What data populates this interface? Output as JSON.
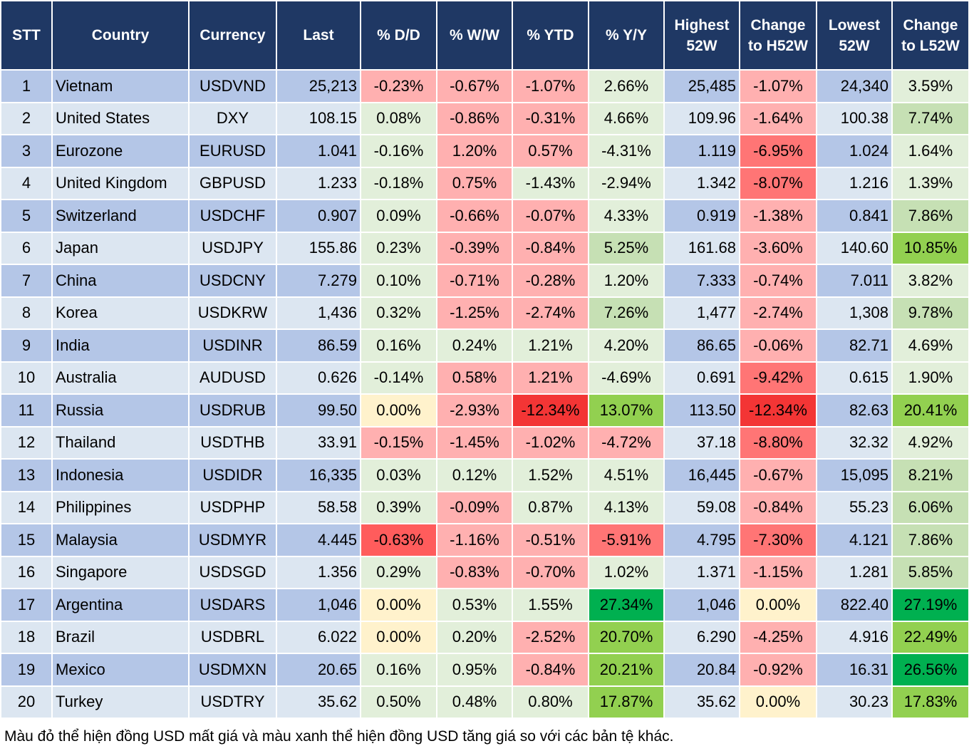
{
  "headers": [
    "STT",
    "Country",
    "Currency",
    "Last",
    "% D/D",
    "% W/W",
    "% YTD",
    "% Y/Y",
    "Highest 52W",
    "Change to H52W",
    "Lowest 52W",
    "Change to L52W"
  ],
  "color_legend": {
    "g1": "#e2efda",
    "g2": "#c6e0b4",
    "g3": "#92d050",
    "g4": "#00b050",
    "r1": "#ffb0b0",
    "r2": "#ff7575",
    "rm": "#ff5c5c",
    "r3": "#f33535",
    "y": "#fff2cc",
    "header": "#1f3864",
    "row_odd": "#b4c6e7",
    "row_even": "#dce6f1"
  },
  "rows": [
    {
      "stt": "1",
      "country": "Vietnam",
      "currency": "USDVND",
      "last": "25,213",
      "dd": "-0.23%",
      "ww": "-0.67%",
      "ytd": "-1.07%",
      "yy": "2.66%",
      "high": "25,485",
      "chh": "-1.07%",
      "low": "24,340",
      "chl": "3.59%",
      "colors": [
        "r1",
        "r1",
        "r1",
        "g1",
        "r1",
        "g1"
      ]
    },
    {
      "stt": "2",
      "country": "United States",
      "currency": "DXY",
      "last": "108.15",
      "dd": "0.08%",
      "ww": "-0.86%",
      "ytd": "-0.31%",
      "yy": "4.66%",
      "high": "109.96",
      "chh": "-1.64%",
      "low": "100.38",
      "chl": "7.74%",
      "colors": [
        "g1",
        "r1",
        "r1",
        "g1",
        "r1",
        "g2"
      ]
    },
    {
      "stt": "3",
      "country": "Eurozone",
      "currency": "EURUSD",
      "last": "1.041",
      "dd": "-0.16%",
      "ww": "1.20%",
      "ytd": "0.57%",
      "yy": "-4.31%",
      "high": "1.119",
      "chh": "-6.95%",
      "low": "1.024",
      "chl": "1.64%",
      "colors": [
        "g1",
        "r1",
        "r1",
        "g1",
        "r2",
        "g1"
      ]
    },
    {
      "stt": "4",
      "country": "United Kingdom",
      "currency": "GBPUSD",
      "last": "1.233",
      "dd": "-0.18%",
      "ww": "0.75%",
      "ytd": "-1.43%",
      "yy": "-2.94%",
      "high": "1.342",
      "chh": "-8.07%",
      "low": "1.216",
      "chl": "1.39%",
      "colors": [
        "g1",
        "r1",
        "g1",
        "g1",
        "r2",
        "g1"
      ]
    },
    {
      "stt": "5",
      "country": "Switzerland",
      "currency": "USDCHF",
      "last": "0.907",
      "dd": "0.09%",
      "ww": "-0.66%",
      "ytd": "-0.07%",
      "yy": "4.33%",
      "high": "0.919",
      "chh": "-1.38%",
      "low": "0.841",
      "chl": "7.86%",
      "colors": [
        "g1",
        "r1",
        "r1",
        "g1",
        "r1",
        "g2"
      ]
    },
    {
      "stt": "6",
      "country": "Japan",
      "currency": "USDJPY",
      "last": "155.86",
      "dd": "0.23%",
      "ww": "-0.39%",
      "ytd": "-0.84%",
      "yy": "5.25%",
      "high": "161.68",
      "chh": "-3.60%",
      "low": "140.60",
      "chl": "10.85%",
      "colors": [
        "g1",
        "r1",
        "r1",
        "g2",
        "r1",
        "g3"
      ]
    },
    {
      "stt": "7",
      "country": "China",
      "currency": "USDCNY",
      "last": "7.279",
      "dd": "0.10%",
      "ww": "-0.71%",
      "ytd": "-0.28%",
      "yy": "1.20%",
      "high": "7.333",
      "chh": "-0.74%",
      "low": "7.011",
      "chl": "3.82%",
      "colors": [
        "g1",
        "r1",
        "r1",
        "g1",
        "r1",
        "g1"
      ]
    },
    {
      "stt": "8",
      "country": "Korea",
      "currency": "USDKRW",
      "last": "1,436",
      "dd": "0.32%",
      "ww": "-1.25%",
      "ytd": "-2.74%",
      "yy": "7.26%",
      "high": "1,477",
      "chh": "-2.74%",
      "low": "1,308",
      "chl": "9.78%",
      "colors": [
        "g1",
        "r1",
        "r1",
        "g2",
        "r1",
        "g2"
      ]
    },
    {
      "stt": "9",
      "country": "India",
      "currency": "USDINR",
      "last": "86.59",
      "dd": "0.16%",
      "ww": "0.24%",
      "ytd": "1.21%",
      "yy": "4.20%",
      "high": "86.65",
      "chh": "-0.06%",
      "low": "82.71",
      "chl": "4.69%",
      "colors": [
        "g1",
        "g1",
        "g1",
        "g1",
        "r1",
        "g1"
      ]
    },
    {
      "stt": "10",
      "country": "Australia",
      "currency": "AUDUSD",
      "last": "0.626",
      "dd": "-0.14%",
      "ww": "0.58%",
      "ytd": "1.21%",
      "yy": "-4.69%",
      "high": "0.691",
      "chh": "-9.42%",
      "low": "0.615",
      "chl": "1.90%",
      "colors": [
        "g1",
        "r1",
        "r1",
        "g1",
        "r2",
        "g1"
      ]
    },
    {
      "stt": "11",
      "country": "Russia",
      "currency": "USDRUB",
      "last": "99.50",
      "dd": "0.00%",
      "ww": "-2.93%",
      "ytd": "-12.34%",
      "yy": "13.07%",
      "high": "113.50",
      "chh": "-12.34%",
      "low": "82.63",
      "chl": "20.41%",
      "colors": [
        "y",
        "r1",
        "r3",
        "g3",
        "r3",
        "g3"
      ]
    },
    {
      "stt": "12",
      "country": "Thailand",
      "currency": "USDTHB",
      "last": "33.91",
      "dd": "-0.15%",
      "ww": "-1.45%",
      "ytd": "-1.02%",
      "yy": "-4.72%",
      "high": "37.18",
      "chh": "-8.80%",
      "low": "32.32",
      "chl": "4.92%",
      "colors": [
        "r1",
        "r1",
        "r1",
        "r1",
        "r2",
        "g1"
      ]
    },
    {
      "stt": "13",
      "country": "Indonesia",
      "currency": "USDIDR",
      "last": "16,335",
      "dd": "0.03%",
      "ww": "0.12%",
      "ytd": "1.52%",
      "yy": "4.51%",
      "high": "16,445",
      "chh": "-0.67%",
      "low": "15,095",
      "chl": "8.21%",
      "colors": [
        "g1",
        "g1",
        "g1",
        "g1",
        "r1",
        "g2"
      ]
    },
    {
      "stt": "14",
      "country": "Philippines",
      "currency": "USDPHP",
      "last": "58.58",
      "dd": "0.39%",
      "ww": "-0.09%",
      "ytd": "0.87%",
      "yy": "4.13%",
      "high": "59.08",
      "chh": "-0.84%",
      "low": "55.23",
      "chl": "6.06%",
      "colors": [
        "g1",
        "r1",
        "g1",
        "g1",
        "r1",
        "g2"
      ]
    },
    {
      "stt": "15",
      "country": "Malaysia",
      "currency": "USDMYR",
      "last": "4.445",
      "dd": "-0.63%",
      "ww": "-1.16%",
      "ytd": "-0.51%",
      "yy": "-5.91%",
      "high": "4.795",
      "chh": "-7.30%",
      "low": "4.121",
      "chl": "7.86%",
      "colors": [
        "rm",
        "r1",
        "r1",
        "r2",
        "r2",
        "g2"
      ]
    },
    {
      "stt": "16",
      "country": "Singapore",
      "currency": "USDSGD",
      "last": "1.356",
      "dd": "0.29%",
      "ww": "-0.83%",
      "ytd": "-0.70%",
      "yy": "1.02%",
      "high": "1.371",
      "chh": "-1.15%",
      "low": "1.281",
      "chl": "5.85%",
      "colors": [
        "g1",
        "r1",
        "r1",
        "g1",
        "r1",
        "g2"
      ]
    },
    {
      "stt": "17",
      "country": "Argentina",
      "currency": "USDARS",
      "last": "1,046",
      "dd": "0.00%",
      "ww": "0.53%",
      "ytd": "1.55%",
      "yy": "27.34%",
      "high": "1,046",
      "chh": "0.00%",
      "low": "822.40",
      "chl": "27.19%",
      "colors": [
        "y",
        "g1",
        "g1",
        "g4",
        "y",
        "g4"
      ]
    },
    {
      "stt": "18",
      "country": "Brazil",
      "currency": "USDBRL",
      "last": "6.022",
      "dd": "0.00%",
      "ww": "0.20%",
      "ytd": "-2.52%",
      "yy": "20.70%",
      "high": "6.290",
      "chh": "-4.25%",
      "low": "4.916",
      "chl": "22.49%",
      "colors": [
        "y",
        "g1",
        "r1",
        "g3",
        "r1",
        "g3"
      ]
    },
    {
      "stt": "19",
      "country": "Mexico",
      "currency": "USDMXN",
      "last": "20.65",
      "dd": "0.16%",
      "ww": "0.95%",
      "ytd": "-0.84%",
      "yy": "20.21%",
      "high": "20.84",
      "chh": "-0.92%",
      "low": "16.31",
      "chl": "26.56%",
      "colors": [
        "g1",
        "g1",
        "r1",
        "g3",
        "r1",
        "g4"
      ]
    },
    {
      "stt": "20",
      "country": "Turkey",
      "currency": "USDTRY",
      "last": "35.62",
      "dd": "0.50%",
      "ww": "0.48%",
      "ytd": "0.80%",
      "yy": "17.87%",
      "high": "35.62",
      "chh": "0.00%",
      "low": "30.23",
      "chl": "17.83%",
      "colors": [
        "g1",
        "g1",
        "g1",
        "g3",
        "y",
        "g3"
      ]
    }
  ],
  "footnote": "Màu đỏ thể hiện đồng USD mất giá và màu xanh thể hiện đồng USD tăng giá so với các bản tệ khác."
}
